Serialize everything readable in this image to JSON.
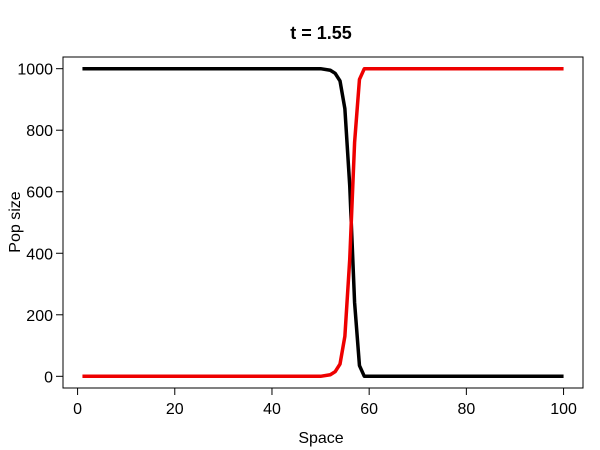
{
  "chart_data": {
    "type": "line",
    "title": "t = 1.55",
    "xlabel": "Space",
    "ylabel": "Pop size",
    "xlim": [
      -3,
      104
    ],
    "ylim": [
      -38,
      1038
    ],
    "xticks": [
      0,
      20,
      40,
      60,
      80,
      100
    ],
    "yticks": [
      0,
      200,
      400,
      600,
      800,
      1000
    ],
    "grid": false,
    "series": [
      {
        "color": "#000000",
        "x": [
          1,
          10,
          20,
          30,
          40,
          50,
          52,
          53,
          54,
          55,
          56,
          57,
          58,
          59,
          60,
          70,
          80,
          90,
          100
        ],
        "y": [
          1000,
          1000,
          1000,
          1000,
          1000,
          1000,
          995,
          985,
          960,
          870,
          620,
          240,
          35,
          0,
          0,
          0,
          0,
          0,
          0
        ]
      },
      {
        "color": "#ee0000",
        "x": [
          1,
          10,
          20,
          30,
          40,
          50,
          52,
          53,
          54,
          55,
          56,
          57,
          58,
          59,
          60,
          70,
          80,
          90,
          100
        ],
        "y": [
          0,
          0,
          0,
          0,
          0,
          0,
          5,
          15,
          40,
          130,
          380,
          760,
          965,
          1000,
          1000,
          1000,
          1000,
          1000,
          1000
        ]
      }
    ]
  }
}
